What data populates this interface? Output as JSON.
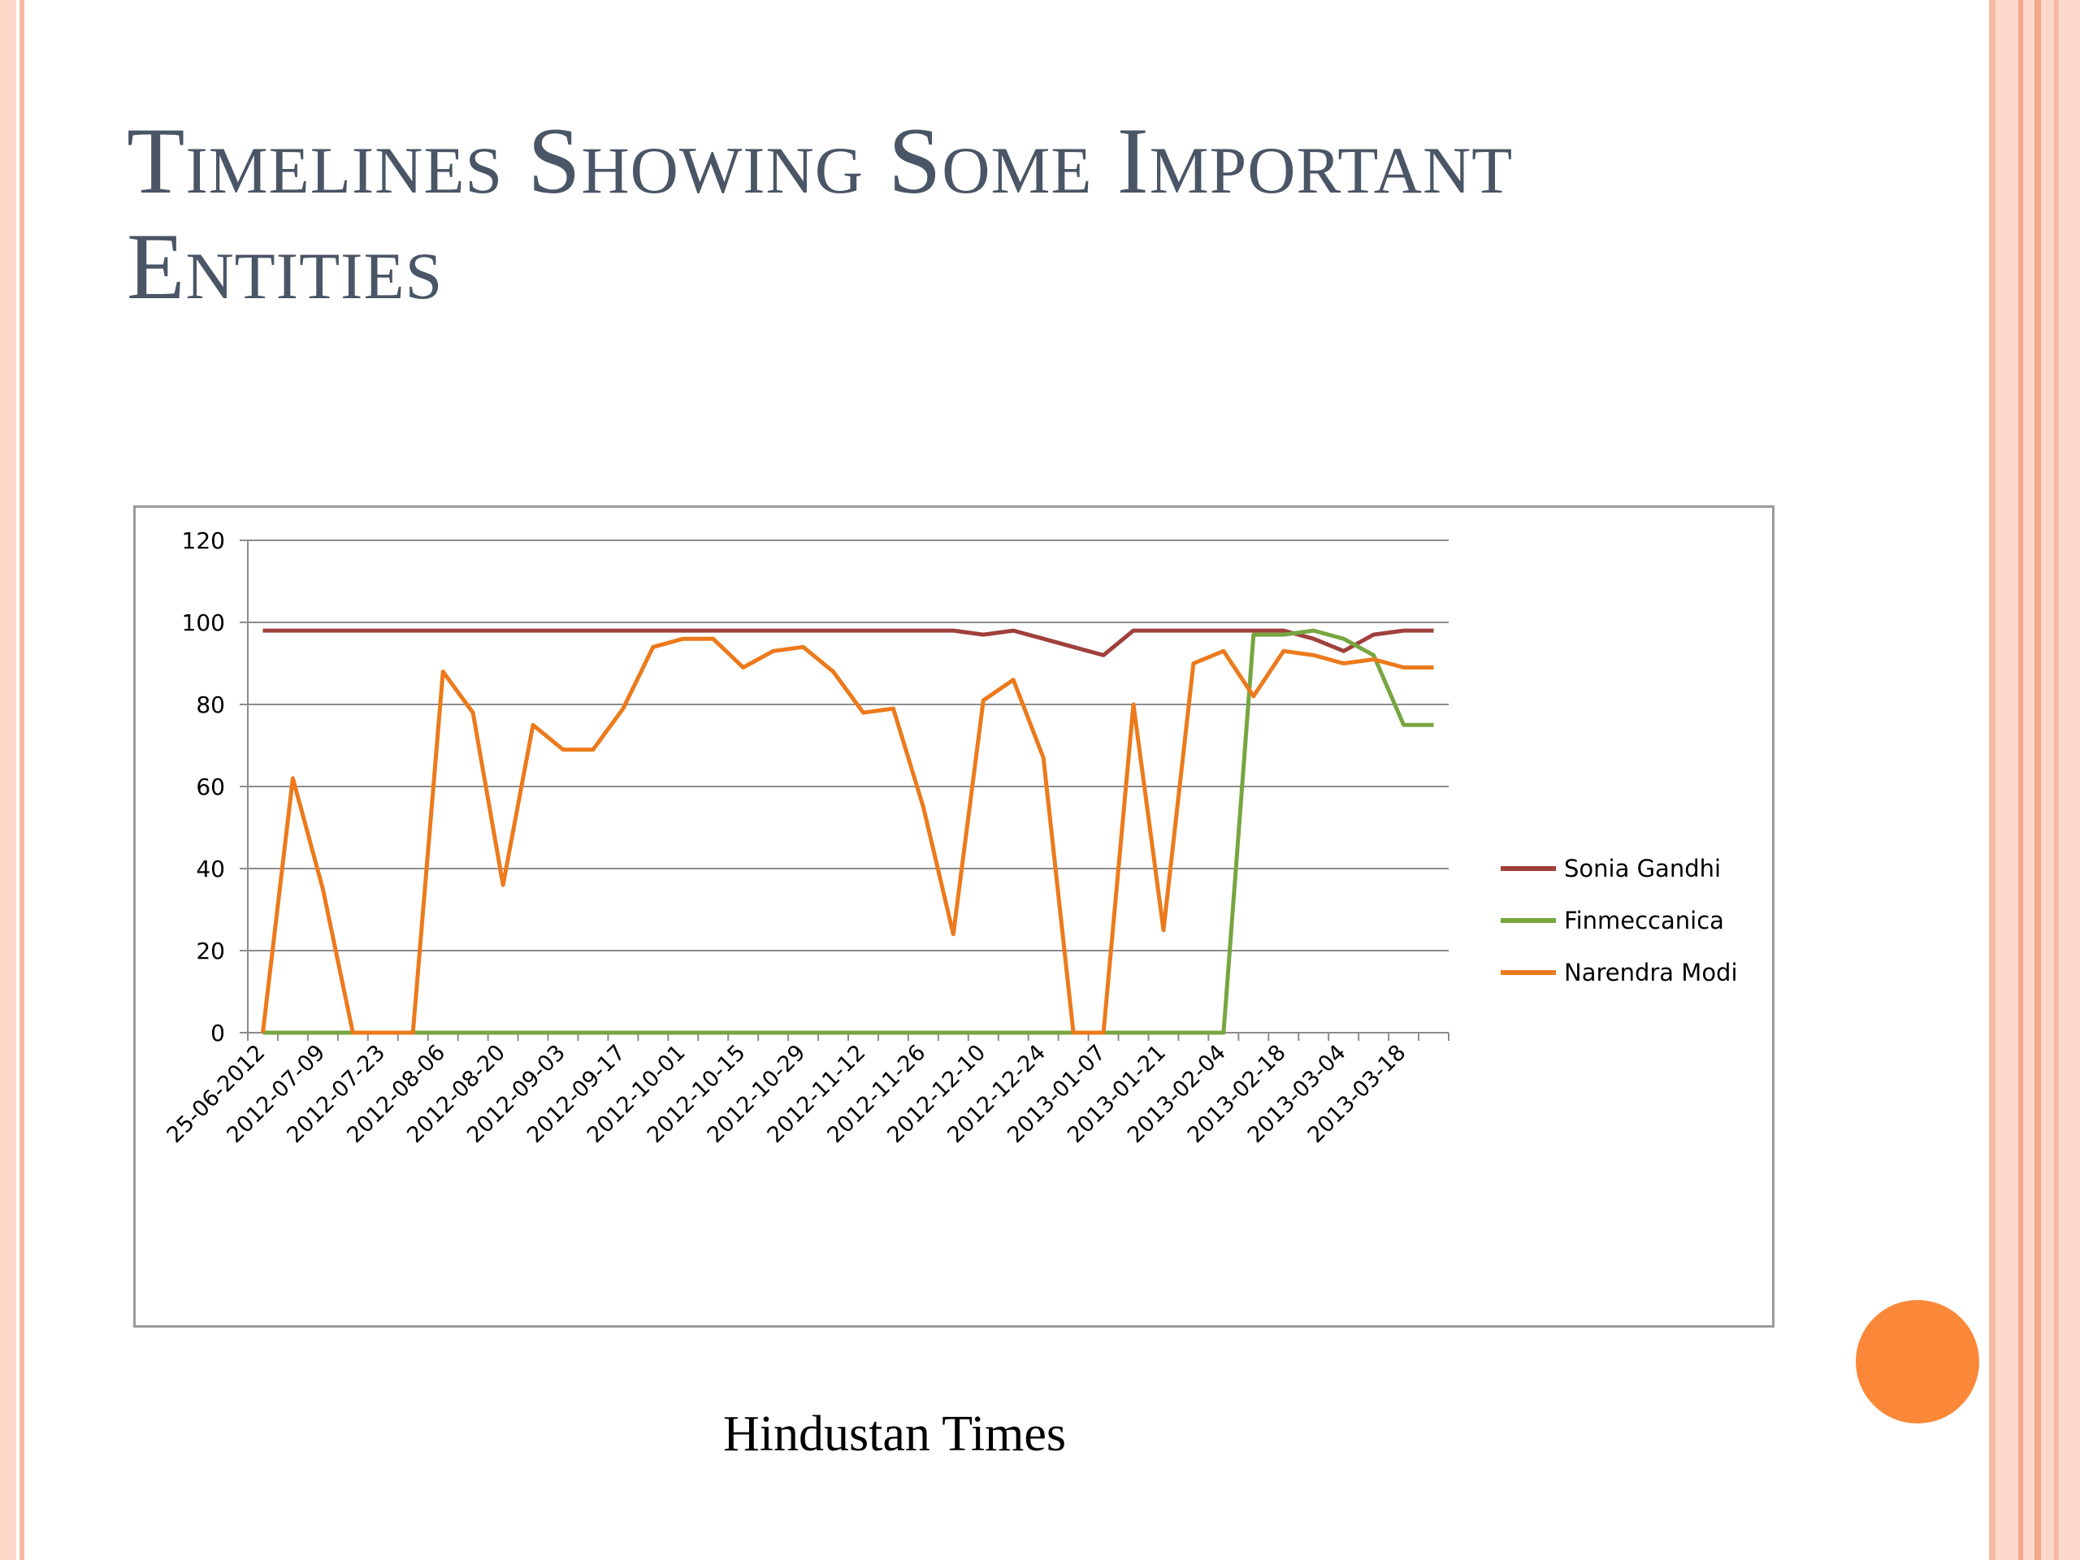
{
  "slide": {
    "title": "Timelines Showing Some Important Entities",
    "caption": "Hindustan Times"
  },
  "colors": {
    "sonia": "#a0403d",
    "finmeccanica": "#77a640",
    "modi": "#ec7a1c",
    "accent_dot": "#fb8838"
  },
  "chart_data": {
    "type": "line",
    "ylim": [
      0,
      120
    ],
    "yticks": [
      0,
      20,
      40,
      60,
      80,
      100,
      120
    ],
    "grid": true,
    "legend_position": "right",
    "x_tick_labels": [
      "25-06-2012",
      "2012-07-09",
      "2012-07-23",
      "2012-08-06",
      "2012-08-20",
      "2012-09-03",
      "2012-09-17",
      "2012-10-01",
      "2012-10-15",
      "2012-10-29",
      "2012-11-12",
      "2012-11-26",
      "2012-12-10",
      "2012-12-24",
      "2013-01-07",
      "2013-01-21",
      "2013-02-04",
      "2013-02-18",
      "2013-03-04",
      "2013-03-18"
    ],
    "x": [
      "2012-06-25",
      "2012-07-02",
      "2012-07-09",
      "2012-07-16",
      "2012-07-23",
      "2012-07-30",
      "2012-08-06",
      "2012-08-13",
      "2012-08-20",
      "2012-08-27",
      "2012-09-03",
      "2012-09-10",
      "2012-09-17",
      "2012-09-24",
      "2012-10-01",
      "2012-10-08",
      "2012-10-15",
      "2012-10-22",
      "2012-10-29",
      "2012-11-05",
      "2012-11-12",
      "2012-11-19",
      "2012-11-26",
      "2012-12-03",
      "2012-12-10",
      "2012-12-17",
      "2012-12-24",
      "2012-12-31",
      "2013-01-07",
      "2013-01-14",
      "2013-01-21",
      "2013-01-28",
      "2013-02-04",
      "2013-02-11",
      "2013-02-18",
      "2013-02-25",
      "2013-03-04",
      "2013-03-11",
      "2013-03-18",
      "2013-03-25"
    ],
    "series": [
      {
        "name": "Sonia Gandhi",
        "color": "#a0403d",
        "values": [
          98,
          98,
          98,
          98,
          98,
          98,
          98,
          98,
          98,
          98,
          98,
          98,
          98,
          98,
          98,
          98,
          98,
          98,
          98,
          98,
          98,
          98,
          98,
          98,
          97,
          98,
          96,
          94,
          92,
          98,
          98,
          98,
          98,
          98,
          98,
          96,
          93,
          97,
          98,
          98
        ]
      },
      {
        "name": "Finmeccanica",
        "color": "#77a640",
        "values": [
          0,
          0,
          0,
          0,
          0,
          0,
          0,
          0,
          0,
          0,
          0,
          0,
          0,
          0,
          0,
          0,
          0,
          0,
          0,
          0,
          0,
          0,
          0,
          0,
          0,
          0,
          0,
          0,
          0,
          0,
          0,
          0,
          0,
          97,
          97,
          98,
          96,
          92,
          75,
          75
        ]
      },
      {
        "name": "Narendra Modi",
        "color": "#ec7a1c",
        "values": [
          0,
          62,
          35,
          0,
          0,
          0,
          88,
          78,
          36,
          75,
          69,
          69,
          79,
          94,
          96,
          96,
          89,
          93,
          94,
          88,
          78,
          79,
          55,
          24,
          81,
          86,
          67,
          0,
          0,
          80,
          25,
          90,
          93,
          82,
          93,
          92,
          90,
          91,
          89,
          89
        ]
      }
    ]
  }
}
